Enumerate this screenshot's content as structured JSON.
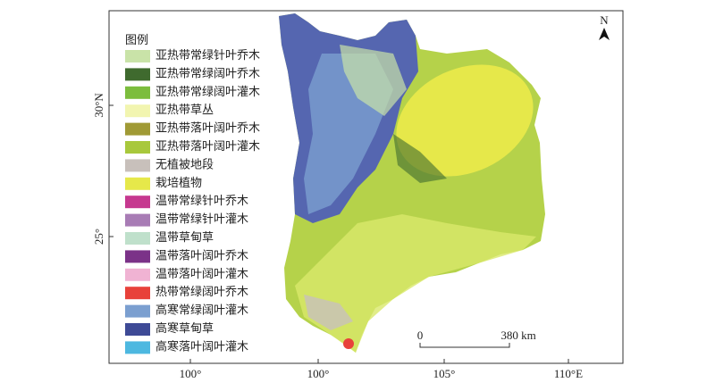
{
  "legend": {
    "title": "图例",
    "items": [
      {
        "label": "亚热带常绿针叶乔木",
        "color": "#c9e3a8"
      },
      {
        "label": "亚热带常绿阔叶乔木",
        "color": "#3f6a2e"
      },
      {
        "label": "亚热带常绿阔叶灌木",
        "color": "#7cbd3d"
      },
      {
        "label": "亚热带草丛",
        "color": "#f2f5b0"
      },
      {
        "label": "亚热带落叶阔叶乔木",
        "color": "#a09a35"
      },
      {
        "label": "亚热带落叶阔叶灌木",
        "color": "#a8c83c"
      },
      {
        "label": "无植被地段",
        "color": "#c8c0bb"
      },
      {
        "label": "栽培植物",
        "color": "#e6e84a"
      },
      {
        "label": "温带常绿针叶乔木",
        "color": "#c6388f"
      },
      {
        "label": "温带常绿针叶灌木",
        "color": "#a87cb5"
      },
      {
        "label": "温带草甸草",
        "color": "#bfe0cb"
      },
      {
        "label": "温带落叶阔叶乔木",
        "color": "#7b3288"
      },
      {
        "label": "温带落叶阔叶灌木",
        "color": "#f0b3d3"
      },
      {
        "label": "热带常绿阔叶乔木",
        "color": "#e8413a"
      },
      {
        "label": "高寒常绿阔叶灌木",
        "color": "#7b9fd0"
      },
      {
        "label": "高寒草甸草",
        "color": "#3e4a96"
      },
      {
        "label": "高寒落叶阔叶灌木",
        "color": "#4db8e0"
      }
    ]
  },
  "axes": {
    "x_labels": [
      "100°",
      "100°",
      "105°",
      "110°E"
    ],
    "y_labels": [
      "30°N",
      "25°"
    ]
  },
  "scale_bar": {
    "start": "0",
    "end": "380 km"
  },
  "north": "N"
}
